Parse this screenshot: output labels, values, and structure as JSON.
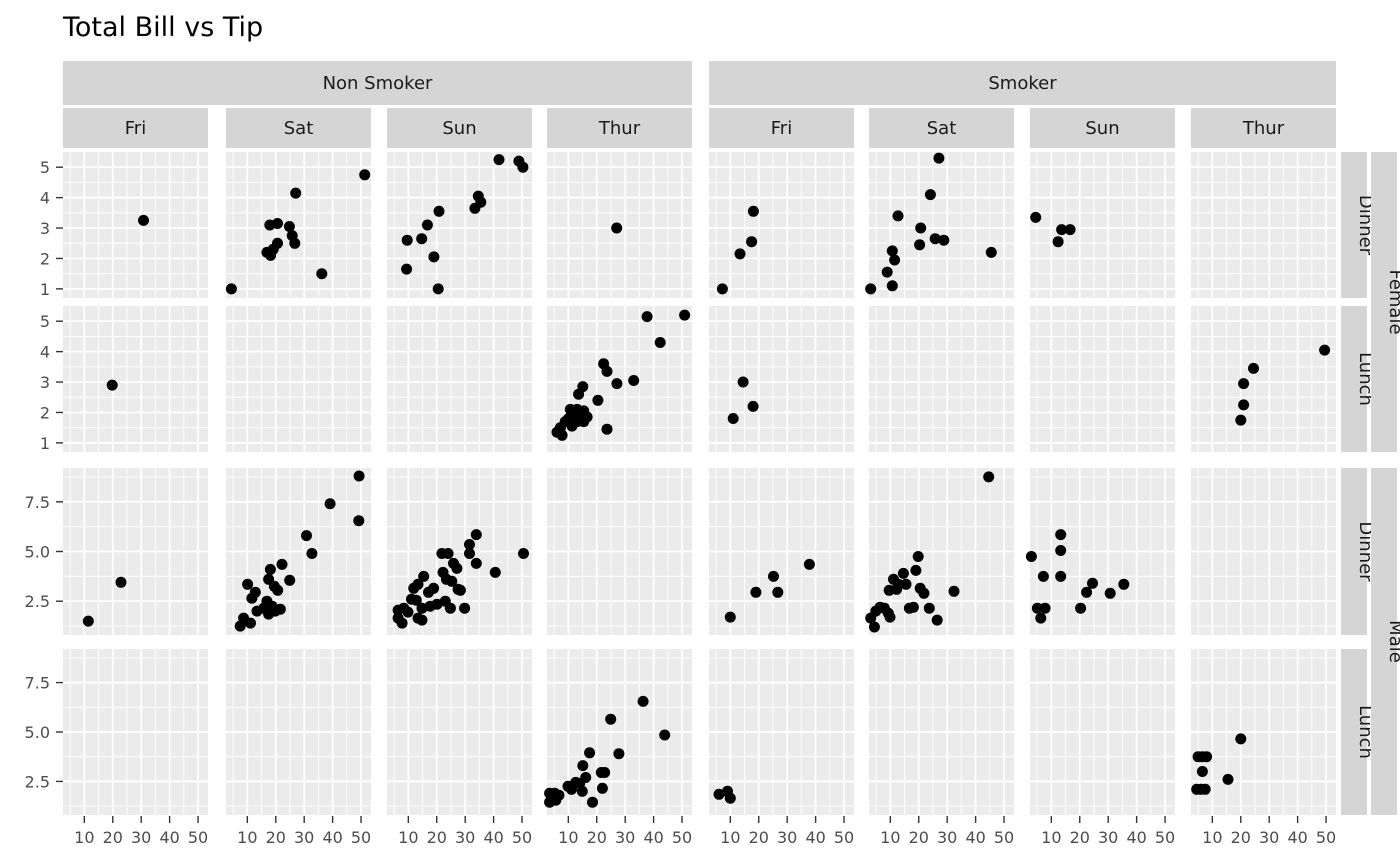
{
  "title": "Total Bill vs Tip",
  "chart_data": {
    "type": "scatter",
    "title": "Total Bill vs Tip",
    "point_color": "#000000",
    "panel_bg": "#ebebeb",
    "strip_bg": "#d5d5d5",
    "grid_color": "#ffffff",
    "axis_text_color": "#4d4d4d",
    "strip_text_color": "#1a1a1a",
    "legend_position": "none",
    "grid": "on",
    "col_groups": [
      "Non Smoker",
      "Smoker"
    ],
    "cols": [
      "Fri",
      "Sat",
      "Sun",
      "Thur",
      "Fri",
      "Sat",
      "Sun",
      "Thur"
    ],
    "row_strips": [
      "Dinner",
      "Lunch",
      "Dinner",
      "Lunch"
    ],
    "row_groups": [
      "Female",
      "Male"
    ],
    "x_ticks": [
      10,
      20,
      30,
      40,
      50
    ],
    "x_minor": [
      5,
      15,
      25,
      35,
      45
    ],
    "x_domain": [
      2.5,
      53.5
    ],
    "xlabel": "",
    "ylabel": "",
    "y_female": {
      "ticks": [
        5,
        4,
        3,
        2,
        1
      ],
      "minor": [
        4.5,
        3.5,
        2.5,
        1.5
      ],
      "domain": [
        0.7,
        5.5
      ]
    },
    "y_male": {
      "ticks": [
        7.5,
        5.0,
        2.5
      ],
      "tick_labels": [
        "7.5",
        "5.0",
        "2.5"
      ],
      "minor": [
        8.75,
        6.25,
        3.75,
        1.25
      ],
      "domain": [
        0.8,
        9.2
      ]
    },
    "panels": {
      "r0c0": [
        [
          30.8,
          3.25
        ]
      ],
      "r0c1": [
        [
          51.3,
          4.75
        ],
        [
          27,
          4.15
        ],
        [
          17.9,
          3.1
        ],
        [
          20.6,
          3.15
        ],
        [
          24.8,
          3.05
        ],
        [
          25.8,
          2.75
        ],
        [
          26.7,
          2.5
        ],
        [
          20.6,
          2.5
        ],
        [
          19.1,
          2.3
        ],
        [
          16.9,
          2.2
        ],
        [
          18.2,
          2.1
        ],
        [
          36.2,
          1.5
        ],
        [
          4.4,
          1.0
        ]
      ],
      "r0c2": [
        [
          41.9,
          5.25
        ],
        [
          48.9,
          5.2
        ],
        [
          50.3,
          5.0
        ],
        [
          34.6,
          4.05
        ],
        [
          35.5,
          3.85
        ],
        [
          33.4,
          3.65
        ],
        [
          20.8,
          3.55
        ],
        [
          16.7,
          3.1
        ],
        [
          14.7,
          2.65
        ],
        [
          9.6,
          2.6
        ],
        [
          19,
          2.05
        ],
        [
          9.4,
          1.65
        ],
        [
          20.5,
          1.0
        ]
      ],
      "r0c3": [
        [
          27,
          3.0
        ]
      ],
      "r0c4": [
        [
          18.1,
          3.55
        ],
        [
          17.5,
          2.55
        ],
        [
          13.4,
          2.15
        ],
        [
          7.2,
          1.0
        ]
      ],
      "r0c5": [
        [
          27.1,
          5.3
        ],
        [
          24.1,
          4.1
        ],
        [
          12.7,
          3.4
        ],
        [
          20.7,
          3.0
        ],
        [
          25.8,
          2.65
        ],
        [
          28.8,
          2.6
        ],
        [
          20.3,
          2.45
        ],
        [
          10.7,
          2.25
        ],
        [
          11.5,
          1.95
        ],
        [
          8.9,
          1.55
        ],
        [
          10.7,
          1.1
        ],
        [
          3.1,
          1.0
        ],
        [
          45.5,
          2.2
        ]
      ],
      "r0c6": [
        [
          4.5,
          3.35
        ],
        [
          13.6,
          2.95
        ],
        [
          16.6,
          2.95
        ],
        [
          12.4,
          2.55
        ]
      ],
      "r0c7": [],
      "r1c0": [
        [
          19.8,
          2.9
        ]
      ],
      "r1c1": [],
      "r1c2": [],
      "r1c3": [
        [
          37.7,
          5.15
        ],
        [
          50.9,
          5.2
        ],
        [
          42.3,
          4.3
        ],
        [
          22.4,
          3.6
        ],
        [
          23.6,
          3.35
        ],
        [
          33,
          3.05
        ],
        [
          27.1,
          2.95
        ],
        [
          15.1,
          2.85
        ],
        [
          13.6,
          2.6
        ],
        [
          20.4,
          2.4
        ],
        [
          10.7,
          2.1
        ],
        [
          13.1,
          2.1
        ],
        [
          15.4,
          2.05
        ],
        [
          11.9,
          1.95
        ],
        [
          14.2,
          1.85
        ],
        [
          16.6,
          1.85
        ],
        [
          10.1,
          1.8
        ],
        [
          13.1,
          1.7
        ],
        [
          8.9,
          1.7
        ],
        [
          15.4,
          1.7
        ],
        [
          11.3,
          1.55
        ],
        [
          7.2,
          1.5
        ],
        [
          6,
          1.35
        ],
        [
          7.8,
          1.25
        ],
        [
          23.6,
          1.45
        ]
      ],
      "r1c4": [
        [
          14.5,
          3.0
        ],
        [
          18,
          2.2
        ],
        [
          11,
          1.8
        ]
      ],
      "r1c5": [],
      "r1c6": [],
      "r1c7": [
        [
          20,
          1.75
        ],
        [
          21,
          2.25
        ],
        [
          21,
          2.95
        ],
        [
          24.5,
          3.45
        ],
        [
          49.5,
          4.05
        ]
      ],
      "r2c0": [
        [
          11.4,
          1.5
        ],
        [
          22.9,
          3.45
        ]
      ],
      "r2c1": [
        [
          49.3,
          8.8
        ],
        [
          39.1,
          7.4
        ],
        [
          49.2,
          6.55
        ],
        [
          30.8,
          5.8
        ],
        [
          32.7,
          4.9
        ],
        [
          22.2,
          4.35
        ],
        [
          18.1,
          4.1
        ],
        [
          17.5,
          3.6
        ],
        [
          24.9,
          3.55
        ],
        [
          10.1,
          3.35
        ],
        [
          19.5,
          3.25
        ],
        [
          20.7,
          3.05
        ],
        [
          12.8,
          2.95
        ],
        [
          11.6,
          2.65
        ],
        [
          16.9,
          2.5
        ],
        [
          18.7,
          2.25
        ],
        [
          15.8,
          2.15
        ],
        [
          21.6,
          2.1
        ],
        [
          13.4,
          2.0
        ],
        [
          19.8,
          2.0
        ],
        [
          17.5,
          1.85
        ],
        [
          8.7,
          1.65
        ],
        [
          11.1,
          1.4
        ],
        [
          7.5,
          1.25
        ]
      ],
      "r2c2": [
        [
          33.9,
          5.85
        ],
        [
          31.5,
          5.35
        ],
        [
          31.5,
          4.9
        ],
        [
          21.8,
          4.9
        ],
        [
          24,
          4.9
        ],
        [
          50.5,
          4.9
        ],
        [
          25.9,
          4.4
        ],
        [
          33.9,
          4.4
        ],
        [
          27.1,
          4.15
        ],
        [
          40.6,
          3.95
        ],
        [
          22.2,
          3.95
        ],
        [
          15.4,
          3.75
        ],
        [
          23.4,
          3.6
        ],
        [
          25.3,
          3.5
        ],
        [
          13.4,
          3.35
        ],
        [
          11.9,
          3.15
        ],
        [
          18.9,
          3.15
        ],
        [
          17.1,
          2.95
        ],
        [
          27.5,
          3.1
        ],
        [
          28.3,
          3.05
        ],
        [
          11.1,
          2.6
        ],
        [
          12.8,
          2.55
        ],
        [
          23,
          2.5
        ],
        [
          20.1,
          2.35
        ],
        [
          17.7,
          2.25
        ],
        [
          8.4,
          2.15
        ],
        [
          14.8,
          2.15
        ],
        [
          24.8,
          2.15
        ],
        [
          29.8,
          2.15
        ],
        [
          6.4,
          2.05
        ],
        [
          9.9,
          1.95
        ],
        [
          13.4,
          1.65
        ],
        [
          14.8,
          1.55
        ],
        [
          6.4,
          1.65
        ],
        [
          7.8,
          1.4
        ]
      ],
      "r2c3": [],
      "r2c4": [
        [
          10,
          1.7
        ],
        [
          19,
          2.95
        ],
        [
          25.2,
          3.75
        ],
        [
          26.7,
          2.95
        ],
        [
          37.8,
          4.35
        ]
      ],
      "r2c5": [
        [
          44.6,
          8.75
        ],
        [
          19.8,
          4.75
        ],
        [
          14.6,
          3.9
        ],
        [
          19,
          4.05
        ],
        [
          11.1,
          3.6
        ],
        [
          12.8,
          3.35
        ],
        [
          15.5,
          3.35
        ],
        [
          9.6,
          3.05
        ],
        [
          12.2,
          3.1
        ],
        [
          20.5,
          3.15
        ],
        [
          21.8,
          2.9
        ],
        [
          32.4,
          3.0
        ],
        [
          4.9,
          2.0
        ],
        [
          6.4,
          2.2
        ],
        [
          7.9,
          2.15
        ],
        [
          9.3,
          1.9
        ],
        [
          9.9,
          1.7
        ],
        [
          3.1,
          1.65
        ],
        [
          4.4,
          1.2
        ],
        [
          16.7,
          2.15
        ],
        [
          18.1,
          2.2
        ],
        [
          23.7,
          2.15
        ],
        [
          26.5,
          1.55
        ]
      ],
      "r2c6": [
        [
          3,
          4.75
        ],
        [
          13.3,
          5.85
        ],
        [
          13.3,
          5.05
        ],
        [
          7.2,
          3.75
        ],
        [
          13.3,
          3.75
        ],
        [
          22.4,
          2.95
        ],
        [
          24.5,
          3.4
        ],
        [
          30.7,
          2.9
        ],
        [
          35.5,
          3.35
        ],
        [
          5.1,
          2.15
        ],
        [
          7.8,
          2.15
        ],
        [
          6.3,
          1.65
        ],
        [
          20.3,
          2.15
        ]
      ],
      "r2c7": [],
      "r3c0": [],
      "r3c1": [],
      "r3c2": [],
      "r3c3": [
        [
          36.3,
          6.55
        ],
        [
          24.9,
          5.65
        ],
        [
          43.9,
          4.85
        ],
        [
          17.5,
          3.95
        ],
        [
          27.8,
          3.9
        ],
        [
          15.1,
          3.3
        ],
        [
          21.6,
          2.95
        ],
        [
          22.8,
          2.95
        ],
        [
          16.1,
          2.7
        ],
        [
          12.6,
          2.45
        ],
        [
          14,
          2.4
        ],
        [
          22,
          2.15
        ],
        [
          14.9,
          2.0
        ],
        [
          11.1,
          2.1
        ],
        [
          9.9,
          2.25
        ],
        [
          5.2,
          1.9
        ],
        [
          3.4,
          1.9
        ],
        [
          6.7,
          1.8
        ],
        [
          4.4,
          1.6
        ],
        [
          3.4,
          1.45
        ],
        [
          5.6,
          1.55
        ],
        [
          18.5,
          1.45
        ]
      ],
      "r3c4": [
        [
          6,
          1.85
        ],
        [
          9,
          2.0
        ],
        [
          10,
          1.65
        ]
      ],
      "r3c5": [],
      "r3c6": [],
      "r3c7": [
        [
          4.5,
          2.1
        ],
        [
          6,
          2.1
        ],
        [
          7.5,
          2.1
        ],
        [
          6.5,
          3.0
        ],
        [
          5,
          3.75
        ],
        [
          6.5,
          3.75
        ],
        [
          8,
          3.75
        ],
        [
          15.5,
          2.6
        ],
        [
          20,
          4.65
        ]
      ]
    }
  }
}
